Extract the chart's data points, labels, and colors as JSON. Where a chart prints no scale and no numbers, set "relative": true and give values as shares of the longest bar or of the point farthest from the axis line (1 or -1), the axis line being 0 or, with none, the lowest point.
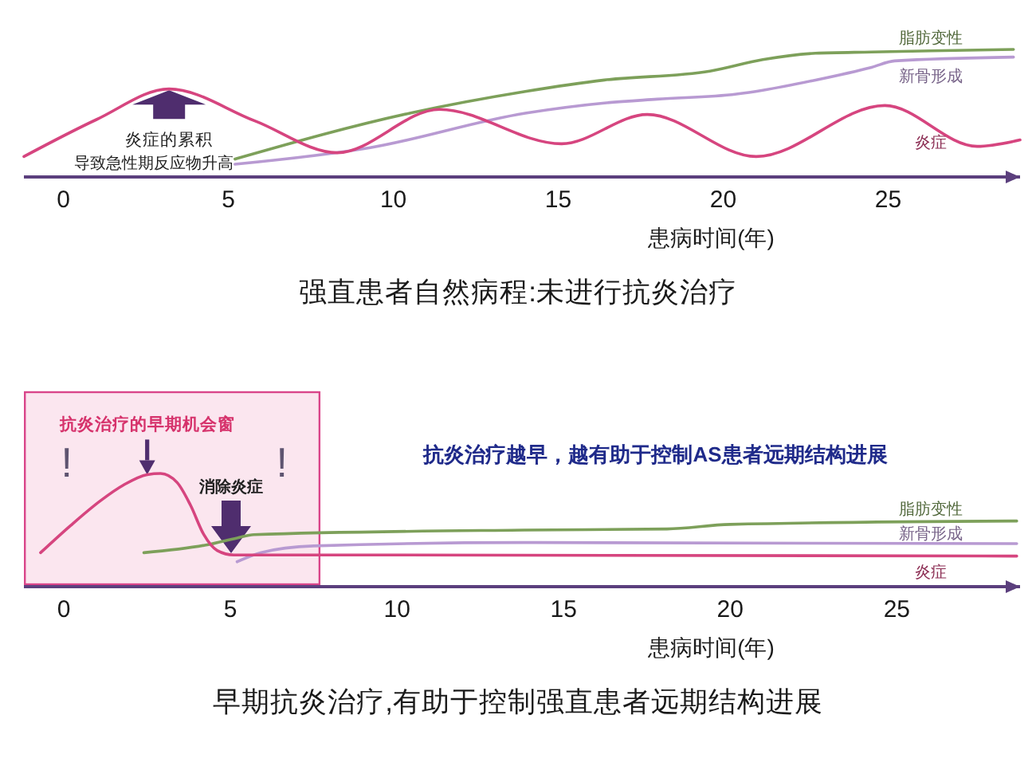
{
  "chart_data": [
    {
      "type": "line",
      "title": "强直患者自然病程:未进行抗炎治疗",
      "xlabel": "患病时间(年)",
      "relative": true,
      "xlim": [
        -1.2,
        29
      ],
      "xticks": [
        0,
        5,
        10,
        15,
        20,
        25
      ],
      "series": [
        {
          "name": "脂肪变性",
          "color": "#7da05a",
          "x": [
            5.2,
            10.5,
            14,
            16.4,
            19.6,
            21.2,
            22.8,
            24.5,
            28.8
          ],
          "values": [
            0.14,
            0.5,
            0.67,
            0.76,
            0.83,
            0.92,
            0.97,
            0.98,
            1
          ]
        },
        {
          "name": "新骨形成",
          "color": "#b89ad2",
          "x": [
            5.2,
            9.3,
            14,
            16.4,
            18,
            20.4,
            21.2,
            22.8,
            24.5,
            25.2,
            28.8
          ],
          "values": [
            0.1,
            0.23,
            0.5,
            0.58,
            0.61,
            0.65,
            0.68,
            0.76,
            0.86,
            0.91,
            0.94
          ]
        },
        {
          "name": "炎症",
          "color": "#d6457f",
          "x": [
            -1.2,
            1,
            3.2,
            5.8,
            8.3,
            11.4,
            15.1,
            17.7,
            21,
            24.9,
            27.7,
            29
          ],
          "values": [
            0.16,
            0.45,
            0.69,
            0.44,
            0.19,
            0.53,
            0.26,
            0.49,
            0.16,
            0.56,
            0.24,
            0.29
          ]
        }
      ],
      "annotations": [
        {
          "text": "炎症的累积",
          "x": 3.2,
          "y": 0.68
        },
        "导致急性期反应物升高"
      ]
    },
    {
      "type": "line",
      "title": "早期抗炎治疗,有助于控制强直患者远期结构进展",
      "xlabel": "患病时间(年)",
      "relative": true,
      "xlim": [
        -1.2,
        28.7
      ],
      "xticks": [
        0,
        5,
        10,
        15,
        20,
        25
      ],
      "bands": [
        {
          "axis": "x",
          "from": -1.2,
          "to": 7.7,
          "color": "#fbe6ef"
        }
      ],
      "series": [
        {
          "name": "脂肪变性",
          "color": "#7da05a",
          "x": [
            2.4,
            4.3,
            5.2,
            5.7,
            13.8,
            18.1,
            20,
            28.6
          ],
          "values": [
            0.3,
            0.37,
            0.43,
            0.46,
            0.5,
            0.51,
            0.55,
            0.58
          ]
        },
        {
          "name": "新骨形成",
          "color": "#b89ad2",
          "x": [
            5.2,
            5.9,
            7.5,
            13.8,
            28.6
          ],
          "values": [
            0.22,
            0.3,
            0.36,
            0.39,
            0.38
          ]
        },
        {
          "name": "炎症",
          "color": "#d6457f",
          "x": [
            -0.7,
            0.2,
            1.1,
            1.8,
            2.5,
            2.9,
            3.4,
            3.8,
            4.2,
            4.6,
            5.1,
            10,
            28.6
          ],
          "values": [
            0.3,
            0.54,
            0.76,
            0.9,
            0.99,
            1,
            0.92,
            0.72,
            0.46,
            0.32,
            0.28,
            0.28,
            0.27
          ]
        }
      ],
      "annotations": [
        {
          "text": "抗炎治疗的早期机会窗",
          "x": 2.5,
          "y": 0.99
        },
        "!",
        "!",
        "消除炎症",
        "抗炎治疗越早，越有助于控制AS患者远期结构进展"
      ]
    }
  ]
}
